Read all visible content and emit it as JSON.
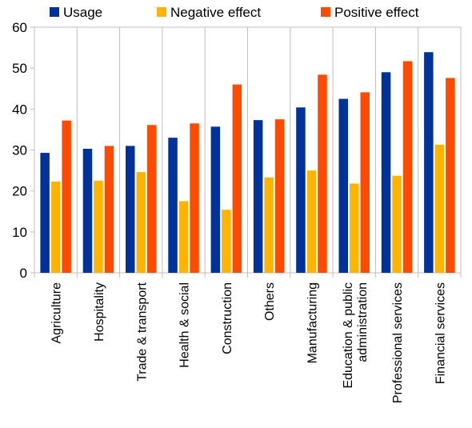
{
  "chart_data": {
    "type": "bar",
    "title": "",
    "xlabel": "",
    "ylabel": "",
    "ylim": [
      0,
      60
    ],
    "yticks": [
      0,
      10,
      20,
      30,
      40,
      50,
      60
    ],
    "grid": false,
    "legend_position": "top",
    "categories": [
      [
        "Agriculture"
      ],
      [
        "Hospitality"
      ],
      [
        "Trade & transport"
      ],
      [
        "Health & social"
      ],
      [
        "Construction"
      ],
      [
        "Others"
      ],
      [
        "Manufacturing"
      ],
      [
        "Education & public",
        "administration"
      ],
      [
        "Professional services"
      ],
      [
        "Financial services"
      ]
    ],
    "series": [
      {
        "name": "Usage",
        "color": "#003299",
        "values": [
          29.3,
          30.3,
          31.0,
          33.0,
          35.7,
          37.3,
          40.4,
          42.5,
          49.0,
          53.9
        ]
      },
      {
        "name": "Negative effect",
        "color": "#FFB400",
        "values": [
          22.3,
          22.5,
          24.6,
          17.5,
          15.4,
          23.3,
          25.0,
          21.8,
          23.7,
          31.3
        ]
      },
      {
        "name": "Positive effect",
        "color": "#FF4B00",
        "values": [
          37.2,
          31.0,
          36.1,
          36.5,
          46.0,
          37.5,
          48.4,
          44.1,
          51.7,
          47.6
        ]
      }
    ]
  }
}
